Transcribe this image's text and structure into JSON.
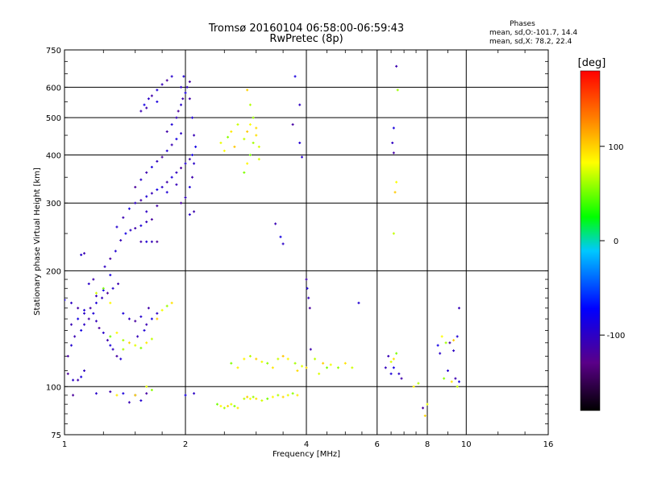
{
  "chart_data": {
    "type": "scatter",
    "title": "Tromsø 20160104 06:58:00-06:59:43",
    "subtitle": "RwPretec (8p)",
    "xlabel": "Frequency [MHz]",
    "ylabel": "Stationary phase Virtual Height [km]",
    "x_scale": "log",
    "y_scale": "log",
    "xlim": [
      1,
      16
    ],
    "ylim": [
      75,
      750
    ],
    "x_ticks": [
      1,
      2,
      4,
      6,
      8,
      10,
      16
    ],
    "y_ticks": [
      75,
      100,
      200,
      300,
      400,
      500,
      600,
      750
    ],
    "grid": true,
    "stats": {
      "header": "Phases",
      "line_o": "mean, sd,O:-101.7, 14.4",
      "line_x": "mean, sd,X:  78.2, 22.4"
    },
    "colorbar": {
      "label": "[deg]",
      "range": [
        -180,
        180
      ],
      "ticks": [
        100,
        0,
        -100
      ],
      "colors": [
        "#000000",
        "#5a0088",
        "#0000ff",
        "#00c8ff",
        "#00ff00",
        "#ffff00",
        "#ff8000",
        "#ff0000"
      ]
    },
    "series": [
      {
        "name": "O",
        "phase": -101.7,
        "points": [
          [
            1.02,
            108
          ],
          [
            1.05,
            104
          ],
          [
            1.08,
            104
          ],
          [
            1.1,
            106
          ],
          [
            1.12,
            110
          ],
          [
            1.02,
            120
          ],
          [
            1.04,
            128
          ],
          [
            1.06,
            135
          ],
          [
            1.1,
            140
          ],
          [
            1.12,
            145
          ],
          [
            1.15,
            150
          ],
          [
            1.18,
            155
          ],
          [
            1.2,
            148
          ],
          [
            1.22,
            142
          ],
          [
            1.25,
            138
          ],
          [
            1.28,
            132
          ],
          [
            1.3,
            128
          ],
          [
            1.32,
            125
          ],
          [
            1.35,
            120
          ],
          [
            1.38,
            118
          ],
          [
            1.04,
            145
          ],
          [
            1.08,
            150
          ],
          [
            1.12,
            155
          ],
          [
            1.16,
            160
          ],
          [
            1.2,
            165
          ],
          [
            1.24,
            170
          ],
          [
            1.28,
            175
          ],
          [
            1.32,
            180
          ],
          [
            1.36,
            185
          ],
          [
            1.3,
            195
          ],
          [
            1.26,
            205
          ],
          [
            1.3,
            215
          ],
          [
            1.34,
            225
          ],
          [
            1.38,
            240
          ],
          [
            1.42,
            250
          ],
          [
            1.46,
            255
          ],
          [
            1.5,
            258
          ],
          [
            1.55,
            262
          ],
          [
            1.6,
            268
          ],
          [
            1.65,
            272
          ],
          [
            1.35,
            260
          ],
          [
            1.4,
            275
          ],
          [
            1.45,
            290
          ],
          [
            1.5,
            300
          ],
          [
            1.55,
            305
          ],
          [
            1.6,
            312
          ],
          [
            1.65,
            318
          ],
          [
            1.7,
            325
          ],
          [
            1.75,
            330
          ],
          [
            1.8,
            340
          ],
          [
            1.85,
            350
          ],
          [
            1.9,
            360
          ],
          [
            1.95,
            370
          ],
          [
            2.0,
            380
          ],
          [
            2.05,
            390
          ],
          [
            2.08,
            400
          ],
          [
            1.6,
            285
          ],
          [
            1.7,
            295
          ],
          [
            1.8,
            320
          ],
          [
            1.9,
            335
          ],
          [
            1.5,
            330
          ],
          [
            1.55,
            345
          ],
          [
            1.6,
            360
          ],
          [
            1.65,
            372
          ],
          [
            1.7,
            385
          ],
          [
            1.75,
            395
          ],
          [
            1.8,
            410
          ],
          [
            1.85,
            425
          ],
          [
            1.9,
            440
          ],
          [
            1.95,
            455
          ],
          [
            1.8,
            460
          ],
          [
            1.85,
            480
          ],
          [
            1.9,
            500
          ],
          [
            1.92,
            520
          ],
          [
            1.95,
            540
          ],
          [
            1.97,
            560
          ],
          [
            2.0,
            580
          ],
          [
            2.02,
            600
          ],
          [
            2.05,
            620
          ],
          [
            1.98,
            640
          ],
          [
            1.55,
            520
          ],
          [
            1.58,
            540
          ],
          [
            1.62,
            560
          ],
          [
            1.65,
            570
          ],
          [
            1.7,
            590
          ],
          [
            1.75,
            610
          ],
          [
            1.8,
            625
          ],
          [
            1.85,
            640
          ],
          [
            1.6,
            530
          ],
          [
            1.7,
            550
          ],
          [
            1.95,
            600
          ],
          [
            2.05,
            560
          ],
          [
            2.08,
            500
          ],
          [
            2.1,
            450
          ],
          [
            2.12,
            420
          ],
          [
            2.1,
            380
          ],
          [
            2.08,
            350
          ],
          [
            2.05,
            330
          ],
          [
            2.0,
            310
          ],
          [
            1.95,
            300
          ],
          [
            1.1,
            220
          ],
          [
            1.12,
            222
          ],
          [
            1.0,
            168
          ],
          [
            1.04,
            165
          ],
          [
            1.08,
            160
          ],
          [
            1.12,
            158
          ],
          [
            1.2,
            172
          ],
          [
            1.25,
            178
          ],
          [
            1.15,
            185
          ],
          [
            1.18,
            190
          ],
          [
            1.4,
            155
          ],
          [
            1.45,
            150
          ],
          [
            1.5,
            148
          ],
          [
            1.55,
            152
          ],
          [
            1.6,
            145
          ],
          [
            1.65,
            150
          ],
          [
            1.7,
            155
          ],
          [
            1.62,
            160
          ],
          [
            1.58,
            140
          ],
          [
            1.52,
            135
          ],
          [
            1.05,
            95
          ],
          [
            1.2,
            96
          ],
          [
            1.3,
            97
          ],
          [
            1.4,
            96
          ],
          [
            1.5,
            95
          ],
          [
            1.6,
            96
          ],
          [
            1.55,
            92
          ],
          [
            1.45,
            91
          ],
          [
            2.0,
            95
          ],
          [
            2.1,
            96
          ],
          [
            1.55,
            238
          ],
          [
            1.6,
            238
          ],
          [
            1.65,
            238
          ],
          [
            1.7,
            238
          ],
          [
            2.05,
            280
          ],
          [
            2.1,
            285
          ],
          [
            3.75,
            640
          ],
          [
            3.85,
            540
          ],
          [
            3.7,
            480
          ],
          [
            3.85,
            430
          ],
          [
            3.35,
            265
          ],
          [
            3.45,
            245
          ],
          [
            3.5,
            235
          ],
          [
            4.0,
            190
          ],
          [
            4.02,
            180
          ],
          [
            4.05,
            170
          ],
          [
            4.08,
            160
          ],
          [
            3.9,
            395
          ],
          [
            6.7,
            680
          ],
          [
            6.6,
            470
          ],
          [
            6.55,
            430
          ],
          [
            6.6,
            405
          ],
          [
            5.4,
            165
          ],
          [
            6.4,
            120
          ],
          [
            6.6,
            112
          ],
          [
            6.8,
            108
          ],
          [
            6.9,
            105
          ],
          [
            6.5,
            108
          ],
          [
            6.3,
            112
          ],
          [
            7.8,
            88
          ],
          [
            9.0,
            110
          ],
          [
            9.4,
            105
          ],
          [
            9.6,
            103
          ],
          [
            9.3,
            124
          ],
          [
            9.1,
            130
          ],
          [
            9.5,
            135
          ],
          [
            9.6,
            160
          ],
          [
            8.5,
            128
          ],
          [
            8.6,
            122
          ],
          [
            4.1,
            125
          ]
        ]
      },
      {
        "name": "X",
        "phase": 78.2,
        "points": [
          [
            2.4,
            90
          ],
          [
            2.45,
            89
          ],
          [
            2.5,
            88
          ],
          [
            2.55,
            89
          ],
          [
            2.6,
            90
          ],
          [
            2.65,
            89
          ],
          [
            2.7,
            88
          ],
          [
            2.8,
            93
          ],
          [
            2.85,
            94
          ],
          [
            2.9,
            93
          ],
          [
            2.95,
            94
          ],
          [
            3.0,
            93
          ],
          [
            3.1,
            92
          ],
          [
            3.2,
            93
          ],
          [
            3.3,
            94
          ],
          [
            3.4,
            95
          ],
          [
            3.5,
            94
          ],
          [
            3.6,
            95
          ],
          [
            3.7,
            96
          ],
          [
            3.8,
            95
          ],
          [
            2.8,
            440
          ],
          [
            2.85,
            460
          ],
          [
            2.9,
            480
          ],
          [
            2.95,
            500
          ],
          [
            3.0,
            450
          ],
          [
            3.05,
            420
          ],
          [
            2.9,
            400
          ],
          [
            2.85,
            380
          ],
          [
            2.9,
            540
          ],
          [
            2.85,
            590
          ],
          [
            2.45,
            430
          ],
          [
            2.55,
            445
          ],
          [
            2.6,
            460
          ],
          [
            2.7,
            480
          ],
          [
            2.65,
            420
          ],
          [
            2.5,
            410
          ],
          [
            2.95,
            430
          ],
          [
            3.0,
            470
          ],
          [
            3.05,
            390
          ],
          [
            2.8,
            360
          ],
          [
            2.8,
            118
          ],
          [
            2.9,
            120
          ],
          [
            3.0,
            118
          ],
          [
            3.1,
            116
          ],
          [
            3.2,
            115
          ],
          [
            3.3,
            112
          ],
          [
            3.4,
            118
          ],
          [
            3.5,
            120
          ],
          [
            3.6,
            118
          ],
          [
            3.75,
            115
          ],
          [
            3.8,
            110
          ],
          [
            3.9,
            113
          ],
          [
            2.6,
            115
          ],
          [
            2.7,
            112
          ],
          [
            4.2,
            118
          ],
          [
            4.4,
            115
          ],
          [
            4.6,
            114
          ],
          [
            4.8,
            112
          ],
          [
            5.0,
            115
          ],
          [
            5.2,
            112
          ],
          [
            1.3,
            135
          ],
          [
            1.35,
            138
          ],
          [
            1.4,
            132
          ],
          [
            1.45,
            130
          ],
          [
            1.5,
            128
          ],
          [
            1.55,
            126
          ],
          [
            1.6,
            130
          ],
          [
            1.65,
            133
          ],
          [
            1.7,
            150
          ],
          [
            1.75,
            158
          ],
          [
            1.8,
            162
          ],
          [
            1.85,
            165
          ],
          [
            1.2,
            175
          ],
          [
            1.25,
            180
          ],
          [
            1.3,
            165
          ],
          [
            1.4,
            125
          ],
          [
            1.5,
            95
          ],
          [
            1.6,
            100
          ],
          [
            1.65,
            98
          ],
          [
            1.35,
            95
          ],
          [
            6.6,
            250
          ],
          [
            6.65,
            320
          ],
          [
            6.7,
            340
          ],
          [
            6.75,
            590
          ],
          [
            6.6,
            118
          ],
          [
            6.5,
            116
          ],
          [
            6.7,
            122
          ],
          [
            7.4,
            100
          ],
          [
            7.6,
            102
          ],
          [
            7.9,
            84
          ],
          [
            8.0,
            90
          ],
          [
            8.8,
            105
          ],
          [
            9.2,
            103
          ],
          [
            9.5,
            100
          ],
          [
            9.3,
            132
          ],
          [
            8.7,
            135
          ],
          [
            8.9,
            130
          ],
          [
            4.0,
            112
          ],
          [
            4.3,
            108
          ],
          [
            4.5,
            112
          ]
        ]
      }
    ]
  }
}
